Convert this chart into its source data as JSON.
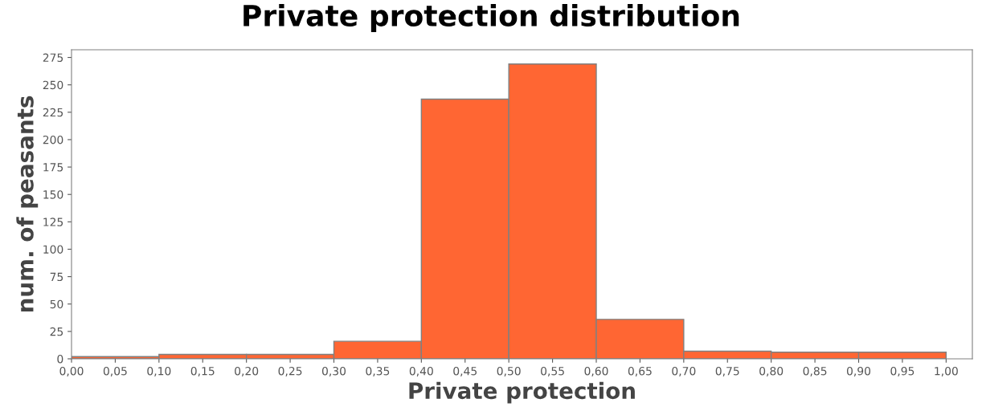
{
  "chart_data": {
    "type": "histogram",
    "title": "Private protection distribution",
    "xlabel": "Private protection",
    "ylabel": "num. of peasants",
    "bins": [
      0.0,
      0.1,
      0.2,
      0.3,
      0.4,
      0.5,
      0.6,
      0.7,
      0.8,
      0.9,
      1.0
    ],
    "values": [
      2,
      4,
      4,
      16,
      237,
      269,
      36,
      7,
      6,
      6
    ],
    "color": "#ff6633",
    "xlim": [
      0,
      1.03
    ],
    "ylim": [
      0,
      282
    ],
    "xticks": [
      {
        "value": 0.0,
        "label": "0,00"
      },
      {
        "value": 0.05,
        "label": "0,05"
      },
      {
        "value": 0.1,
        "label": "0,10"
      },
      {
        "value": 0.15,
        "label": "0,15"
      },
      {
        "value": 0.2,
        "label": "0,20"
      },
      {
        "value": 0.25,
        "label": "0,25"
      },
      {
        "value": 0.3,
        "label": "0,30"
      },
      {
        "value": 0.35,
        "label": "0,35"
      },
      {
        "value": 0.4,
        "label": "0,40"
      },
      {
        "value": 0.45,
        "label": "0,45"
      },
      {
        "value": 0.5,
        "label": "0,50"
      },
      {
        "value": 0.55,
        "label": "0,55"
      },
      {
        "value": 0.6,
        "label": "0,60"
      },
      {
        "value": 0.65,
        "label": "0,65"
      },
      {
        "value": 0.7,
        "label": "0,70"
      },
      {
        "value": 0.75,
        "label": "0,75"
      },
      {
        "value": 0.8,
        "label": "0,80"
      },
      {
        "value": 0.85,
        "label": "0,85"
      },
      {
        "value": 0.9,
        "label": "0,90"
      },
      {
        "value": 0.95,
        "label": "0,95"
      },
      {
        "value": 1.0,
        "label": "1,00"
      }
    ],
    "yticks": [
      0,
      25,
      50,
      75,
      100,
      125,
      150,
      175,
      200,
      225,
      250,
      275
    ],
    "grid": false
  }
}
